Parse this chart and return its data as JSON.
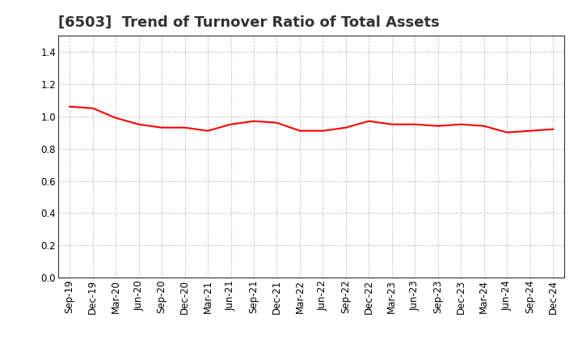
{
  "title": "[6503]  Trend of Turnover Ratio of Total Assets",
  "labels": [
    "Sep-19",
    "Dec-19",
    "Mar-20",
    "Jun-20",
    "Sep-20",
    "Dec-20",
    "Mar-21",
    "Jun-21",
    "Sep-21",
    "Dec-21",
    "Mar-22",
    "Jun-22",
    "Sep-22",
    "Dec-22",
    "Mar-23",
    "Jun-23",
    "Sep-23",
    "Dec-23",
    "Mar-24",
    "Jun-24",
    "Sep-24",
    "Dec-24"
  ],
  "values": [
    1.06,
    1.05,
    0.99,
    0.95,
    0.93,
    0.93,
    0.91,
    0.95,
    0.97,
    0.96,
    0.91,
    0.91,
    0.93,
    0.97,
    0.95,
    0.95,
    0.94,
    0.95,
    0.94,
    0.9,
    0.91,
    0.92
  ],
  "line_color": "#ff0000",
  "line_width": 1.5,
  "ylim": [
    0.0,
    1.5
  ],
  "yticks": [
    0.0,
    0.2,
    0.4,
    0.6,
    0.8,
    1.0,
    1.2,
    1.4
  ],
  "grid_color": "#aaaaaa",
  "bg_color": "#ffffff",
  "title_fontsize": 13,
  "tick_fontsize": 8.5,
  "title_color": "#333333"
}
